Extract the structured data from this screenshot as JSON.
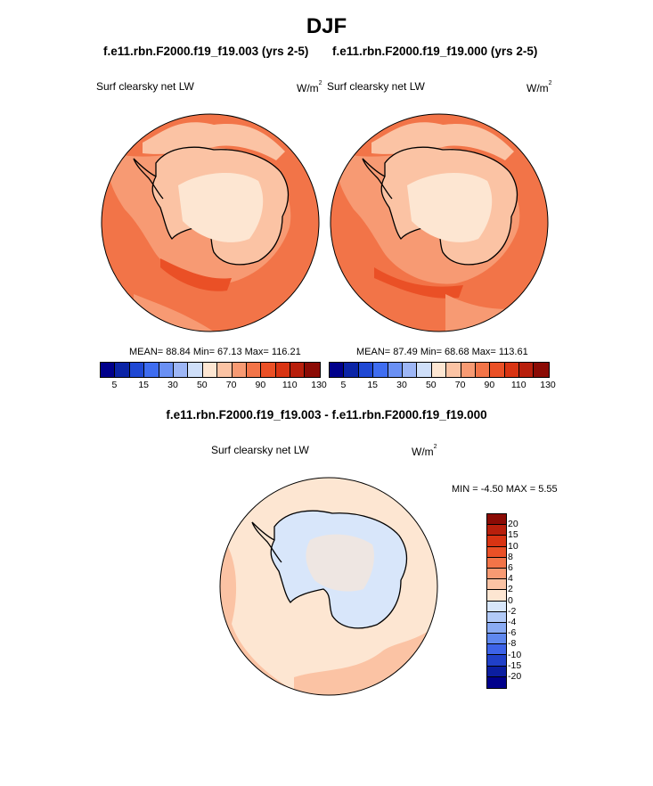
{
  "figure": {
    "title": "DJF",
    "subtitle_left": "f.e11.rbn.F2000.f19_f19.003 (yrs 2-5)",
    "subtitle_right": "f.e11.rbn.F2000.f19_f19.000 (yrs 2-5)",
    "subtitle_diff": "f.e11.rbn.F2000.f19_f19.003 - f.e11.rbn.F2000.f19_f19.000"
  },
  "panels": {
    "left": {
      "label": "Surf clearsky net LW",
      "unit": "W/m",
      "unit_sup": "2",
      "stats": "MEAN=  88.84  Min=  67.13  Max= 116.21"
    },
    "right": {
      "label": "Surf clearsky net LW",
      "unit": "W/m",
      "unit_sup": "2",
      "stats": "MEAN=  87.49  Min=  68.68  Max= 113.61"
    },
    "diff": {
      "label": "Surf clearsky net LW",
      "unit": "W/m",
      "unit_sup": "2",
      "stats": "MIN =  -4.50 MAX =   5.55"
    }
  },
  "colorbar_abs": {
    "labels": [
      "5",
      "15",
      "30",
      "50",
      "70",
      "90",
      "110",
      "130"
    ],
    "colors": [
      "#00008b",
      "#0b24a6",
      "#1f48d4",
      "#3f6df0",
      "#6a90f4",
      "#9db6f6",
      "#cfdff9",
      "#fde6d2",
      "#fbc3a4",
      "#f79a73",
      "#f27448",
      "#ea5026",
      "#d93413",
      "#b81f0c",
      "#8b0b05"
    ]
  },
  "colorbar_diff": {
    "labels": [
      "20",
      "15",
      "10",
      "8",
      "6",
      "4",
      "2",
      "0",
      "-2",
      "-4",
      "-6",
      "-8",
      "-10",
      "-15",
      "-20"
    ],
    "colors": [
      "#8b0b05",
      "#b81f0c",
      "#d93413",
      "#ea5026",
      "#f27448",
      "#f79a73",
      "#fbc3a4",
      "#fde6d2",
      "#d8e6fa",
      "#b2caf7",
      "#8aabf3",
      "#5f88ef",
      "#3d63e8",
      "#2040c8",
      "#0b1ea0",
      "#00008b"
    ]
  },
  "chart_data": [
    {
      "type": "heatmap",
      "projection": "south-polar-stereographic",
      "title": "Surf clearsky net LW",
      "case": "f.e11.rbn.F2000.f19_f19.003 (yrs 2-5)",
      "units": "W/m2",
      "mean": 88.84,
      "min": 67.13,
      "max": 116.21,
      "contour_levels": [
        5,
        15,
        30,
        50,
        70,
        90,
        110,
        130
      ]
    },
    {
      "type": "heatmap",
      "projection": "south-polar-stereographic",
      "title": "Surf clearsky net LW",
      "case": "f.e11.rbn.F2000.f19_f19.000 (yrs 2-5)",
      "units": "W/m2",
      "mean": 87.49,
      "min": 68.68,
      "max": 113.61,
      "contour_levels": [
        5,
        15,
        30,
        50,
        70,
        90,
        110,
        130
      ]
    },
    {
      "type": "heatmap",
      "projection": "south-polar-stereographic",
      "title": "Surf clearsky net LW",
      "case": "f.e11.rbn.F2000.f19_f19.003 - f.e11.rbn.F2000.f19_f19.000",
      "units": "W/m2",
      "min": -4.5,
      "max": 5.55,
      "contour_levels": [
        -20,
        -15,
        -10,
        -8,
        -6,
        -4,
        -2,
        0,
        2,
        4,
        6,
        8,
        10,
        15,
        20
      ]
    }
  ]
}
